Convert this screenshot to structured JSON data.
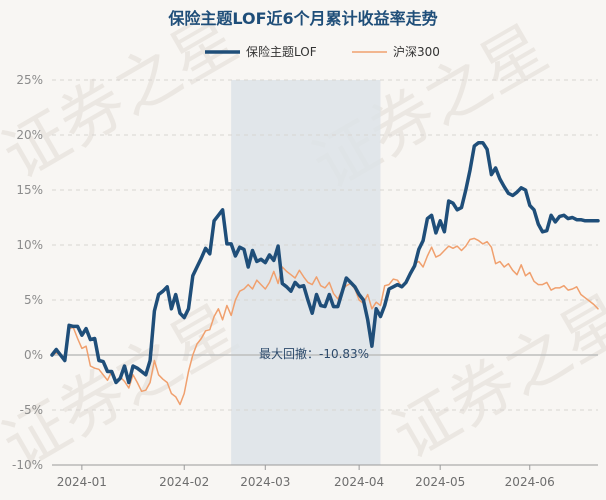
{
  "chart_data": {
    "type": "line",
    "title": "保险主题LOF近6个月累计收益率走势",
    "xlabel": "",
    "ylabel": "",
    "watermark": "证券之星",
    "ylim": [
      -10,
      25
    ],
    "yticks": [
      -10,
      -5,
      0,
      5,
      10,
      15,
      20,
      25
    ],
    "ytick_labels": [
      "-10%",
      "-5%",
      "0%",
      "5%",
      "10%",
      "15%",
      "20%",
      "25%"
    ],
    "xticks": [
      {
        "label": "2024-01",
        "t": 7
      },
      {
        "label": "2024-02",
        "t": 31
      },
      {
        "label": "2024-03",
        "t": 50
      },
      {
        "label": "2024-04",
        "t": 72
      },
      {
        "label": "2024-05",
        "t": 91
      },
      {
        "label": "2024-06",
        "t": 112
      }
    ],
    "t_range": [
      0,
      128
    ],
    "drawdown": {
      "label": "最大回撤：-10.83%",
      "start_t": 42,
      "end_t": 77
    },
    "series": [
      {
        "name": "保险主题LOF",
        "color": "#1f4e79",
        "width": 3.5,
        "t": [
          0,
          1,
          2,
          3,
          4,
          5,
          6,
          7,
          8,
          9,
          10,
          11,
          12,
          13,
          14,
          15,
          16,
          17,
          18,
          19,
          20,
          21,
          22,
          23,
          24,
          25,
          26,
          27,
          28,
          29,
          30,
          31,
          32,
          33,
          34,
          35,
          36,
          37,
          38,
          39,
          40,
          41,
          42,
          43,
          44,
          45,
          46,
          47,
          48,
          49,
          50,
          51,
          52,
          53,
          54,
          55,
          56,
          57,
          58,
          59,
          60,
          61,
          62,
          63,
          64,
          65,
          66,
          67,
          68,
          69,
          70,
          71,
          72,
          73,
          74,
          75,
          76,
          77,
          78,
          79,
          80,
          81,
          82,
          83,
          84,
          85,
          86,
          87,
          88,
          89,
          90,
          91,
          92,
          93,
          94,
          95,
          96,
          97,
          98,
          99,
          100,
          101,
          102,
          103,
          104,
          105,
          106,
          107,
          108,
          109,
          110,
          111,
          112,
          113,
          114,
          115,
          116,
          117,
          118,
          119,
          120,
          121,
          122,
          123,
          124,
          125,
          126,
          127,
          128
        ],
        "values": [
          0,
          0.5,
          0,
          -0.5,
          2.7,
          2.6,
          2.6,
          1.8,
          2.4,
          1.4,
          1.5,
          -0.5,
          -0.6,
          -1.5,
          -1.5,
          -2.5,
          -2.1,
          -1.0,
          -2.5,
          -1.0,
          -1.2,
          -1.5,
          -1.8,
          -0.5,
          4.0,
          5.5,
          5.8,
          6.2,
          4.2,
          5.5,
          3.8,
          3.4,
          4.2,
          7.2,
          8.0,
          8.8,
          9.7,
          9.2,
          12.2,
          12.7,
          13.2,
          10.1,
          10.1,
          9.0,
          9.8,
          9.6,
          8.0,
          9.5,
          8.5,
          8.7,
          8.4,
          9.1,
          8.6,
          9.9,
          6.5,
          6.2,
          5.8,
          6.6,
          6.2,
          6.3,
          5.0,
          3.8,
          5.5,
          4.5,
          4.4,
          5.5,
          4.4,
          4.4,
          5.7,
          7.0,
          6.6,
          6.2,
          5.5,
          5.0,
          3.2,
          0.8,
          4.2,
          3.5,
          4.5,
          6.0,
          6.2,
          6.4,
          6.2,
          6.6,
          7.4,
          8.1,
          9.6,
          10.4,
          12.4,
          12.7,
          11.1,
          12.2,
          11.2,
          14.0,
          13.8,
          13.2,
          13.4,
          15.0,
          16.8,
          19.0,
          19.3,
          19.3,
          18.7,
          16.4,
          17.0,
          16.0,
          15.3,
          14.7,
          14.5,
          14.8,
          15.2,
          15.0,
          13.6,
          13.2,
          11.9,
          11.2,
          11.3,
          12.7,
          12.1,
          12.6,
          12.7,
          12.4,
          12.5,
          12.3,
          12.3,
          12.2,
          12.2,
          12.2,
          12.2
        ]
      },
      {
        "name": "沪深300",
        "color": "#f0a06e",
        "width": 1.5,
        "t": [
          0,
          1,
          2,
          3,
          4,
          5,
          6,
          7,
          8,
          9,
          10,
          11,
          12,
          13,
          14,
          15,
          16,
          17,
          18,
          19,
          20,
          21,
          22,
          23,
          24,
          25,
          26,
          27,
          28,
          29,
          30,
          31,
          32,
          33,
          34,
          35,
          36,
          37,
          38,
          39,
          40,
          41,
          42,
          43,
          44,
          45,
          46,
          47,
          48,
          49,
          50,
          51,
          52,
          53,
          54,
          55,
          56,
          57,
          58,
          59,
          60,
          61,
          62,
          63,
          64,
          65,
          66,
          67,
          68,
          69,
          70,
          71,
          72,
          73,
          74,
          75,
          76,
          77,
          78,
          79,
          80,
          81,
          82,
          83,
          84,
          85,
          86,
          87,
          88,
          89,
          90,
          91,
          92,
          93,
          94,
          95,
          96,
          97,
          98,
          99,
          100,
          101,
          102,
          103,
          104,
          105,
          106,
          107,
          108,
          109,
          110,
          111,
          112,
          113,
          114,
          115,
          116,
          117,
          118,
          119,
          120,
          121,
          122,
          123,
          124,
          125,
          126,
          127,
          128
        ],
        "values": [
          0,
          0.2,
          0,
          -0.2,
          2.4,
          2.5,
          1.5,
          0.6,
          0.8,
          -1.0,
          -1.2,
          -1.3,
          -1.8,
          -2.3,
          -1.5,
          -2.4,
          -2.0,
          -2.4,
          -3.0,
          -1.8,
          -2.5,
          -3.3,
          -3.2,
          -2.5,
          -0.5,
          -1.8,
          -2.2,
          -2.5,
          -3.5,
          -3.8,
          -4.5,
          -3.5,
          -1.5,
          0.0,
          1.0,
          1.5,
          2.2,
          2.3,
          3.5,
          4.2,
          3.2,
          4.5,
          3.6,
          5.0,
          5.8,
          6.0,
          6.4,
          6.0,
          6.8,
          6.4,
          6.0,
          6.6,
          7.6,
          6.5,
          8.0,
          7.6,
          7.3,
          7.0,
          7.7,
          7.1,
          6.6,
          6.4,
          7.1,
          6.3,
          6.1,
          6.6,
          5.6,
          5.1,
          5.9,
          6.3,
          6.5,
          6.0,
          5.0,
          4.7,
          5.5,
          4.2,
          4.8,
          4.5,
          6.3,
          6.4,
          6.9,
          6.8,
          6.2,
          6.7,
          7.4,
          8.3,
          8.5,
          8.0,
          9.0,
          9.8,
          8.9,
          9.1,
          9.5,
          9.9,
          9.7,
          9.9,
          9.5,
          9.9,
          10.5,
          10.6,
          10.4,
          10.1,
          10.3,
          9.8,
          8.3,
          8.5,
          8.0,
          8.3,
          7.7,
          7.3,
          8.2,
          7.2,
          7.5,
          6.7,
          6.4,
          6.4,
          6.6,
          5.9,
          6.1,
          6.1,
          6.3,
          5.9,
          6.0,
          6.2,
          5.5,
          5.2,
          4.9,
          4.6,
          4.2
        ]
      }
    ]
  }
}
